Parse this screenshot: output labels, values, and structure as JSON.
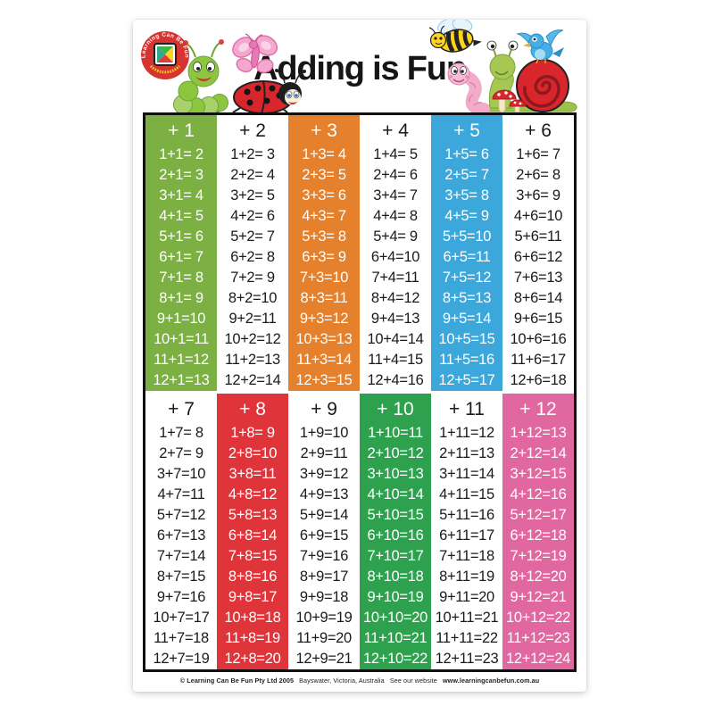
{
  "page": {
    "title": "Adding is Fun"
  },
  "logo": {
    "arc_text": "Learning Can Be Fun"
  },
  "characters": [
    "caterpillar-icon",
    "butterfly-icon",
    "ladybug-icon",
    "bee-icon",
    "worm-icon",
    "snail-icon",
    "bird-icon",
    "mushroom-icon"
  ],
  "colors": {
    "green_plus1": "#7CB042",
    "orange_plus3": "#E5812C",
    "blue_plus5": "#3BA7DB",
    "red_plus8": "#DF343A",
    "green_plus10": "#2EA14E",
    "pink_plus12": "#E0679F",
    "ink": "#1A1A1A",
    "white": "#FFFFFF"
  },
  "table": {
    "blocks": [
      {
        "columns": [
          {
            "header": "+ 1",
            "bg": "#7CB042",
            "fg": "#FFFFFF",
            "rows": [
              "1+1= 2",
              "2+1= 3",
              "3+1= 4",
              "4+1= 5",
              "5+1= 6",
              "6+1= 7",
              "7+1= 8",
              "8+1= 9",
              "9+1=10",
              "10+1=11",
              "11+1=12",
              "12+1=13"
            ]
          },
          {
            "header": "+ 2",
            "bg": "#FFFFFF",
            "fg": "#1A1A1A",
            "rows": [
              "1+2= 3",
              "2+2= 4",
              "3+2= 5",
              "4+2= 6",
              "5+2= 7",
              "6+2= 8",
              "7+2= 9",
              "8+2=10",
              "9+2=11",
              "10+2=12",
              "11+2=13",
              "12+2=14"
            ]
          },
          {
            "header": "+ 3",
            "bg": "#E5812C",
            "fg": "#FFFFFF",
            "rows": [
              "1+3= 4",
              "2+3= 5",
              "3+3= 6",
              "4+3= 7",
              "5+3= 8",
              "6+3= 9",
              "7+3=10",
              "8+3=11",
              "9+3=12",
              "10+3=13",
              "11+3=14",
              "12+3=15"
            ]
          },
          {
            "header": "+ 4",
            "bg": "#FFFFFF",
            "fg": "#1A1A1A",
            "rows": [
              "1+4= 5",
              "2+4= 6",
              "3+4= 7",
              "4+4= 8",
              "5+4= 9",
              "6+4=10",
              "7+4=11",
              "8+4=12",
              "9+4=13",
              "10+4=14",
              "11+4=15",
              "12+4=16"
            ]
          },
          {
            "header": "+ 5",
            "bg": "#3BA7DB",
            "fg": "#FFFFFF",
            "rows": [
              "1+5= 6",
              "2+5= 7",
              "3+5= 8",
              "4+5= 9",
              "5+5=10",
              "6+5=11",
              "7+5=12",
              "8+5=13",
              "9+5=14",
              "10+5=15",
              "11+5=16",
              "12+5=17"
            ]
          },
          {
            "header": "+ 6",
            "bg": "#FFFFFF",
            "fg": "#1A1A1A",
            "rows": [
              "1+6= 7",
              "2+6= 8",
              "3+6= 9",
              "4+6=10",
              "5+6=11",
              "6+6=12",
              "7+6=13",
              "8+6=14",
              "9+6=15",
              "10+6=16",
              "11+6=17",
              "12+6=18"
            ]
          }
        ]
      },
      {
        "columns": [
          {
            "header": "+ 7",
            "bg": "#FFFFFF",
            "fg": "#1A1A1A",
            "rows": [
              "1+7= 8",
              "2+7= 9",
              "3+7=10",
              "4+7=11",
              "5+7=12",
              "6+7=13",
              "7+7=14",
              "8+7=15",
              "9+7=16",
              "10+7=17",
              "11+7=18",
              "12+7=19"
            ]
          },
          {
            "header": "+ 8",
            "bg": "#DF343A",
            "fg": "#FFFFFF",
            "rows": [
              "1+8= 9",
              "2+8=10",
              "3+8=11",
              "4+8=12",
              "5+8=13",
              "6+8=14",
              "7+8=15",
              "8+8=16",
              "9+8=17",
              "10+8=18",
              "11+8=19",
              "12+8=20"
            ]
          },
          {
            "header": "+ 9",
            "bg": "#FFFFFF",
            "fg": "#1A1A1A",
            "rows": [
              "1+9=10",
              "2+9=11",
              "3+9=12",
              "4+9=13",
              "5+9=14",
              "6+9=15",
              "7+9=16",
              "8+9=17",
              "9+9=18",
              "10+9=19",
              "11+9=20",
              "12+9=21"
            ]
          },
          {
            "header": "+ 10",
            "bg": "#2EA14E",
            "fg": "#FFFFFF",
            "rows": [
              "1+10=11",
              "2+10=12",
              "3+10=13",
              "4+10=14",
              "5+10=15",
              "6+10=16",
              "7+10=17",
              "8+10=18",
              "9+10=19",
              "10+10=20",
              "11+10=21",
              "12+10=22"
            ]
          },
          {
            "header": "+ 11",
            "bg": "#FFFFFF",
            "fg": "#1A1A1A",
            "rows": [
              "1+11=12",
              "2+11=13",
              "3+11=14",
              "4+11=15",
              "5+11=16",
              "6+11=17",
              "7+11=18",
              "8+11=19",
              "9+11=20",
              "10+11=21",
              "11+11=22",
              "12+11=23"
            ]
          },
          {
            "header": "+ 12",
            "bg": "#E0679F",
            "fg": "#FFFFFF",
            "rows": [
              "1+12=13",
              "2+12=14",
              "3+12=15",
              "4+12=16",
              "5+12=17",
              "6+12=18",
              "7+12=19",
              "8+12=20",
              "9+12=21",
              "10+12=22",
              "11+12=23",
              "12+12=24"
            ]
          }
        ]
      }
    ]
  },
  "footer": {
    "publisher": "© Learning Can Be Fun Pty Ltd 2005",
    "location": "Bayswater, Victoria, Australia",
    "see_text": "See our website",
    "website": "www.learningcanbefun.com.au"
  }
}
